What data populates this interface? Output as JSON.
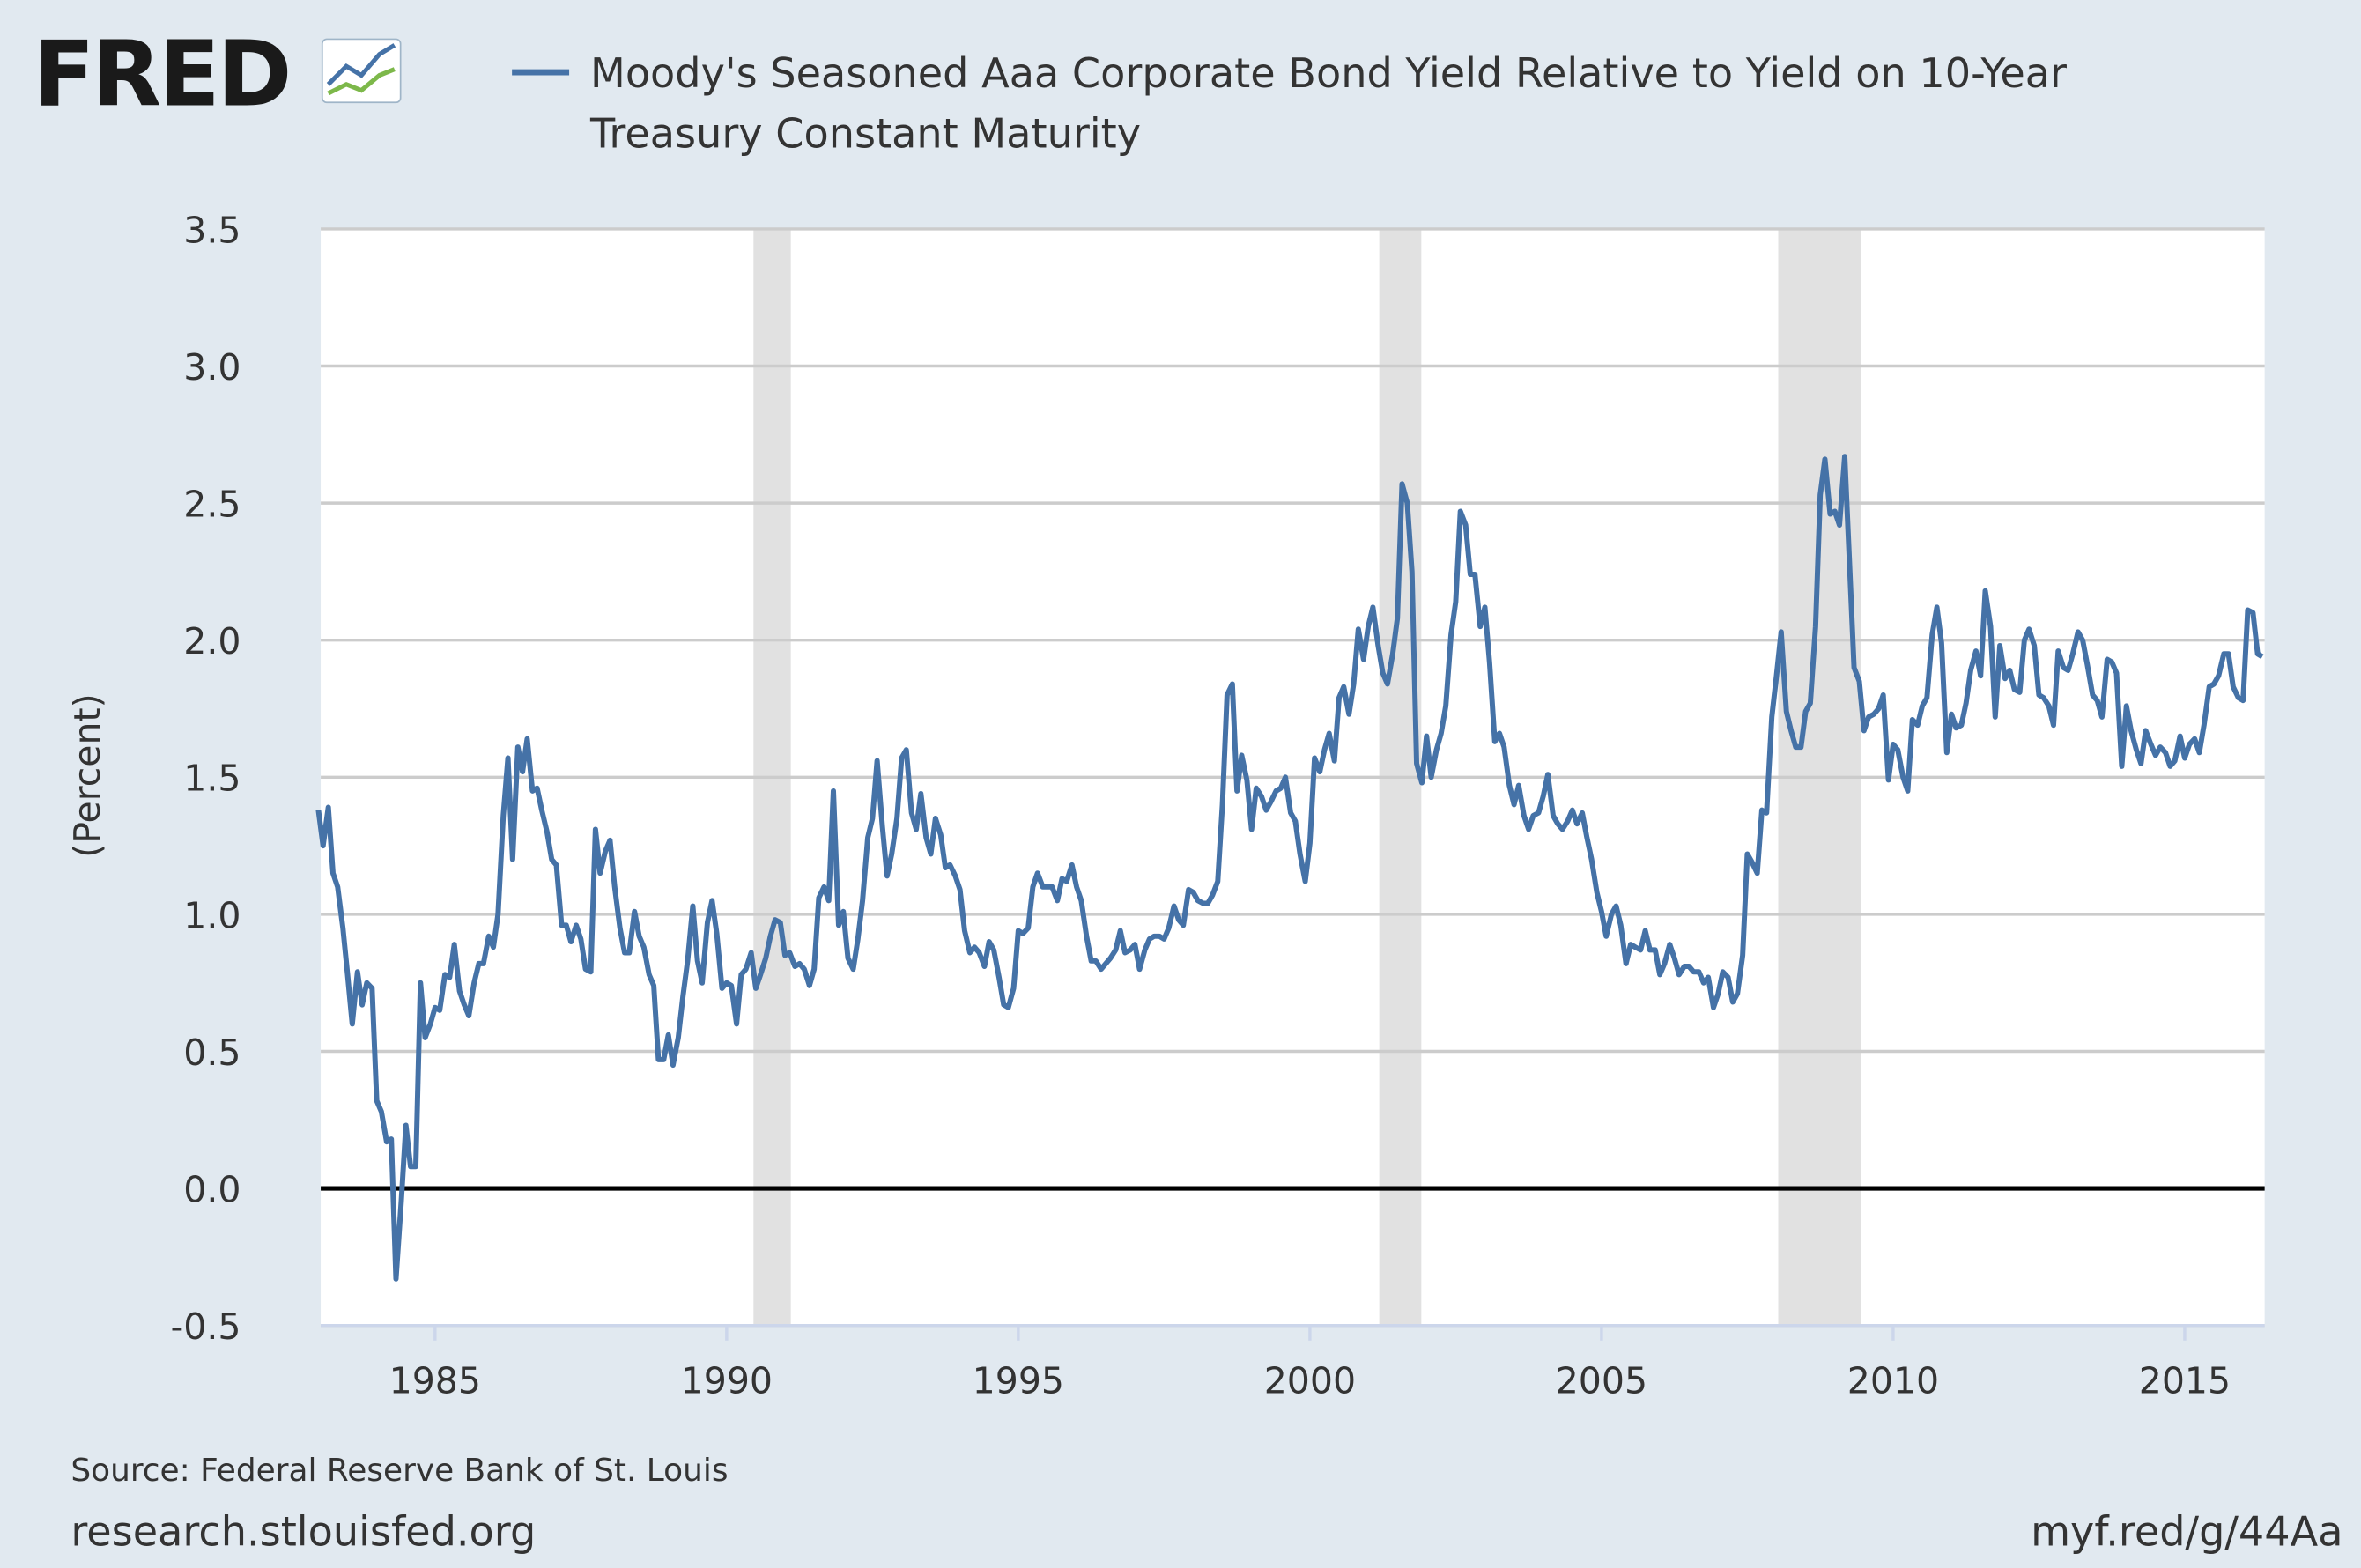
{
  "logo": "FRED",
  "chart_data": {
    "type": "line",
    "series": [
      {
        "name": "Moody's Seasoned Aaa Corporate Bond Yield Relative to Yield on 10-Year Treasury Constant Maturity",
        "color": "#4572a7",
        "values": [
          1.38,
          1.25,
          1.39,
          1.15,
          1.1,
          0.95,
          0.78,
          0.6,
          0.79,
          0.67,
          0.75,
          0.73,
          0.32,
          0.28,
          0.17,
          0.18,
          -0.33,
          -0.05,
          0.23,
          0.08,
          0.08,
          0.75,
          0.55,
          0.6,
          0.66,
          0.65,
          0.78,
          0.77,
          0.89,
          0.72,
          0.67,
          0.63,
          0.75,
          0.82,
          0.82,
          0.92,
          0.88,
          1.0,
          1.36,
          1.57,
          1.2,
          1.61,
          1.52,
          1.64,
          1.45,
          1.46,
          1.38,
          1.3,
          1.2,
          1.18,
          0.96,
          0.96,
          0.9,
          0.96,
          0.91,
          0.8,
          0.79,
          1.31,
          1.15,
          1.23,
          1.27,
          1.1,
          0.95,
          0.86,
          0.86,
          1.01,
          0.92,
          0.88,
          0.78,
          0.74,
          0.47,
          0.47,
          0.56,
          0.45,
          0.55,
          0.7,
          0.83,
          1.03,
          0.83,
          0.75,
          0.97,
          1.05,
          0.93,
          0.73,
          0.75,
          0.74,
          0.6,
          0.78,
          0.8,
          0.86,
          0.73,
          0.78,
          0.84,
          0.92,
          0.98,
          0.97,
          0.85,
          0.86,
          0.81,
          0.82,
          0.8,
          0.74,
          0.8,
          1.06,
          1.1,
          1.05,
          1.45,
          0.96,
          1.01,
          0.84,
          0.8,
          0.91,
          1.05,
          1.28,
          1.35,
          1.56,
          1.32,
          1.14,
          1.22,
          1.35,
          1.57,
          1.6,
          1.37,
          1.31,
          1.44,
          1.28,
          1.22,
          1.35,
          1.29,
          1.17,
          1.18,
          1.14,
          1.09,
          0.94,
          0.86,
          0.88,
          0.86,
          0.81,
          0.9,
          0.87,
          0.77,
          0.67,
          0.66,
          0.73,
          0.94,
          0.93,
          0.95,
          1.1,
          1.15,
          1.1,
          1.1,
          1.1,
          1.05,
          1.13,
          1.12,
          1.18,
          1.1,
          1.05,
          0.92,
          0.83,
          0.83,
          0.8,
          0.82,
          0.84,
          0.87,
          0.94,
          0.86,
          0.87,
          0.89,
          0.8,
          0.87,
          0.91,
          0.92,
          0.92,
          0.91,
          0.95,
          1.03,
          0.98,
          0.96,
          1.09,
          1.08,
          1.05,
          1.04,
          1.04,
          1.07,
          1.12,
          1.4,
          1.8,
          1.84,
          1.45,
          1.58,
          1.49,
          1.31,
          1.46,
          1.43,
          1.38,
          1.41,
          1.45,
          1.46,
          1.5,
          1.37,
          1.34,
          1.22,
          1.12,
          1.26,
          1.57,
          1.52,
          1.6,
          1.66,
          1.56,
          1.79,
          1.83,
          1.73,
          1.84,
          2.04,
          1.93,
          2.05,
          2.12,
          1.98,
          1.88,
          1.84,
          1.95,
          2.08,
          2.57,
          2.5,
          2.25,
          1.55,
          1.48,
          1.65,
          1.5,
          1.6,
          1.66,
          1.76,
          2.02,
          2.14,
          2.47,
          2.42,
          2.24,
          2.24,
          2.05,
          2.12,
          1.92,
          1.63,
          1.66,
          1.61,
          1.47,
          1.4,
          1.47,
          1.36,
          1.31,
          1.36,
          1.37,
          1.43,
          1.51,
          1.36,
          1.33,
          1.31,
          1.34,
          1.38,
          1.33,
          1.37,
          1.28,
          1.2,
          1.08,
          1.01,
          0.92,
          1.0,
          1.03,
          0.96,
          0.82,
          0.89,
          0.88,
          0.87,
          0.94,
          0.87,
          0.87,
          0.78,
          0.82,
          0.89,
          0.84,
          0.78,
          0.81,
          0.81,
          0.79,
          0.79,
          0.75,
          0.77,
          0.66,
          0.71,
          0.79,
          0.77,
          0.68,
          0.71,
          0.85,
          1.22,
          1.19,
          1.15,
          1.38,
          1.37,
          1.72,
          1.87,
          2.03,
          1.74,
          1.67,
          1.61,
          1.61,
          1.74,
          1.77,
          2.05,
          2.53,
          2.66,
          2.46,
          2.47,
          2.42,
          2.67,
          2.29,
          1.9,
          1.85,
          1.67,
          1.72,
          1.73,
          1.75,
          1.8,
          1.49,
          1.62,
          1.6,
          1.5,
          1.45,
          1.71,
          1.69,
          1.76,
          1.79,
          2.02,
          2.12,
          1.99,
          1.59,
          1.73,
          1.68,
          1.69,
          1.77,
          1.89,
          1.96,
          1.87,
          2.18,
          2.05,
          1.72,
          1.98,
          1.86,
          1.89,
          1.82,
          1.81,
          2.0,
          2.04,
          1.98,
          1.8,
          1.79,
          1.76,
          1.69,
          1.96,
          1.9,
          1.89,
          1.95,
          2.03,
          2.0,
          1.91,
          1.8,
          1.78,
          1.72,
          1.93,
          1.92,
          1.88,
          1.54,
          1.76,
          1.67,
          1.6,
          1.55,
          1.67,
          1.62,
          1.58,
          1.61,
          1.59,
          1.54,
          1.56,
          1.65,
          1.57,
          1.62,
          1.64,
          1.59,
          1.69,
          1.83,
          1.84,
          1.87,
          1.95,
          1.95,
          1.83,
          1.79,
          1.78,
          2.11,
          2.1,
          1.95,
          1.94
        ]
      }
    ],
    "x": [
      1983,
      1983.08,
      1983.17,
      1983.25,
      1983.33,
      1983.42,
      1983.5,
      1983.58,
      1983.67,
      1983.75,
      1983.83,
      1983.92,
      1984,
      1984.08,
      1984.17,
      1984.25,
      1984.33,
      1984.42,
      1984.5,
      1984.58,
      1984.67,
      1984.75,
      1984.83,
      1984.92,
      1985,
      1985.08,
      1985.17,
      1985.25,
      1985.33,
      1985.42,
      1985.5,
      1985.58,
      1985.67,
      1985.75,
      1985.83,
      1985.92,
      1986,
      1986.08,
      1986.17,
      1986.25,
      1986.33,
      1986.42,
      1986.5,
      1986.58,
      1986.67,
      1986.75,
      1986.83,
      1986.92,
      1987,
      1987.08,
      1987.17,
      1987.25,
      1987.33,
      1987.42,
      1987.5,
      1987.58,
      1987.67,
      1987.75,
      1987.83,
      1987.92,
      1988,
      1988.08,
      1988.17,
      1988.25,
      1988.33,
      1988.42,
      1988.5,
      1988.58,
      1988.67,
      1988.75,
      1988.83,
      1988.92,
      1989,
      1989.08,
      1989.17,
      1989.25,
      1989.33,
      1989.42,
      1989.5,
      1989.58,
      1989.67,
      1989.75,
      1989.83,
      1989.92,
      1990,
      1990.08,
      1990.17,
      1990.25,
      1990.33,
      1990.42,
      1990.5,
      1990.58,
      1990.67,
      1990.75,
      1990.83,
      1990.92,
      1991,
      1991.08,
      1991.17,
      1991.25,
      1991.33,
      1991.42,
      1991.5,
      1991.58,
      1991.67,
      1991.75,
      1991.83,
      1991.92,
      1992,
      1992.08,
      1992.17,
      1992.25,
      1992.33,
      1992.42,
      1992.5,
      1992.58,
      1992.67,
      1992.75,
      1992.83,
      1992.92,
      1993,
      1993.08,
      1993.17,
      1993.25,
      1993.33,
      1993.42,
      1993.5,
      1993.58,
      1993.67,
      1993.75,
      1993.83,
      1993.92,
      1994,
      1994.08,
      1994.17,
      1994.25,
      1994.33,
      1994.42,
      1994.5,
      1994.58,
      1994.67,
      1994.75,
      1994.83,
      1994.92,
      1995,
      1995.08,
      1995.17,
      1995.25,
      1995.33,
      1995.42,
      1995.5,
      1995.58,
      1995.67,
      1995.75,
      1995.83,
      1995.92,
      1996,
      1996.08,
      1996.17,
      1996.25,
      1996.33,
      1996.42,
      1996.5,
      1996.58,
      1996.67,
      1996.75,
      1996.83,
      1996.92,
      1997,
      1997.08,
      1997.17,
      1997.25,
      1997.33,
      1997.42,
      1997.5,
      1997.58,
      1997.67,
      1997.75,
      1997.83,
      1997.92,
      1998,
      1998.08,
      1998.17,
      1998.25,
      1998.33,
      1998.42,
      1998.5,
      1998.58,
      1998.67,
      1998.75,
      1998.83,
      1998.92,
      1999,
      1999.08,
      1999.17,
      1999.25,
      1999.33,
      1999.42,
      1999.5,
      1999.58,
      1999.67,
      1999.75,
      1999.83,
      1999.92,
      2000,
      2000.08,
      2000.17,
      2000.25,
      2000.33,
      2000.42,
      2000.5,
      2000.58,
      2000.67,
      2000.75,
      2000.83,
      2000.92,
      2001,
      2001.08,
      2001.17,
      2001.25,
      2001.33,
      2001.42,
      2001.5,
      2001.58,
      2001.67,
      2001.75,
      2001.83,
      2001.92,
      2002,
      2002.08,
      2002.17,
      2002.25,
      2002.33,
      2002.42,
      2002.5,
      2002.58,
      2002.67,
      2002.75,
      2002.83,
      2002.92,
      2003,
      2003.08,
      2003.17,
      2003.25,
      2003.33,
      2003.42,
      2003.5,
      2003.58,
      2003.67,
      2003.75,
      2003.83,
      2003.92,
      2004,
      2004.08,
      2004.17,
      2004.25,
      2004.33,
      2004.42,
      2004.5,
      2004.58,
      2004.67,
      2004.75,
      2004.83,
      2004.92,
      2005,
      2005.08,
      2005.17,
      2005.25,
      2005.33,
      2005.42,
      2005.5,
      2005.58,
      2005.67,
      2005.75,
      2005.83,
      2005.92,
      2006,
      2006.08,
      2006.17,
      2006.25,
      2006.33,
      2006.42,
      2006.5,
      2006.58,
      2006.67,
      2006.75,
      2006.83,
      2006.92,
      2007,
      2007.08,
      2007.17,
      2007.25,
      2007.33,
      2007.42,
      2007.5,
      2007.58,
      2007.67,
      2007.75,
      2007.83,
      2007.92,
      2008,
      2008.08,
      2008.17,
      2008.25,
      2008.33,
      2008.42,
      2008.5,
      2008.58,
      2008.67,
      2008.75,
      2008.83,
      2008.92,
      2009,
      2009.08,
      2009.17,
      2009.25,
      2009.33,
      2009.42,
      2009.5,
      2009.58,
      2009.67,
      2009.75,
      2009.83,
      2009.92,
      2010,
      2010.08,
      2010.17,
      2010.25,
      2010.33,
      2010.42,
      2010.5,
      2010.58,
      2010.67,
      2010.75,
      2010.83,
      2010.92,
      2011,
      2011.08,
      2011.17,
      2011.25,
      2011.33,
      2011.42,
      2011.5,
      2011.58,
      2011.67,
      2011.75,
      2011.83,
      2011.92,
      2012,
      2012.08,
      2012.17,
      2012.25,
      2012.33,
      2012.42,
      2012.5,
      2012.58,
      2012.67,
      2012.75,
      2012.83,
      2012.92,
      2013,
      2013.08,
      2013.17,
      2013.25,
      2013.33,
      2013.42,
      2013.5,
      2013.58,
      2013.67,
      2013.75,
      2013.83,
      2013.92,
      2014,
      2014.08,
      2014.17,
      2014.25,
      2014.33,
      2014.42,
      2014.5,
      2014.58,
      2014.67,
      2014.75,
      2014.83,
      2014.92,
      2015,
      2015.08,
      2015.17,
      2015.25,
      2015.33,
      2015.42,
      2015.5,
      2015.58,
      2015.67,
      2015.75,
      2015.83,
      2015.92,
      2016,
      2016.08,
      2016.17,
      2016.25,
      2016.33
    ],
    "xlim": [
      1983.04,
      2016.37
    ],
    "xticks": [
      1985,
      1990,
      1995,
      2000,
      2005,
      2010,
      2015
    ],
    "ylim": [
      -0.5,
      3.5
    ],
    "yticks": [
      {
        "value": -0.5,
        "label": "-0.5"
      },
      {
        "value": 0,
        "label": "0.0"
      },
      0.5,
      {
        "value": 1,
        "label": "1.0"
      },
      1.5,
      {
        "value": 2,
        "label": "2.0"
      },
      2.5,
      {
        "value": 3,
        "label": "3.0"
      },
      3.5
    ],
    "ylabel": "(Percent)",
    "grid": true,
    "reference_line": 0,
    "recessions": [
      [
        1990.46,
        1991.1
      ],
      [
        2001.19,
        2001.91
      ],
      [
        2008.03,
        2009.45
      ]
    ],
    "recession_color": "#e1e1e1",
    "source": "Source: Federal Reserve Bank of St. Louis",
    "footer_left": "research.stlouisfed.org",
    "footer_right": "myf.red/g/44Aa"
  }
}
